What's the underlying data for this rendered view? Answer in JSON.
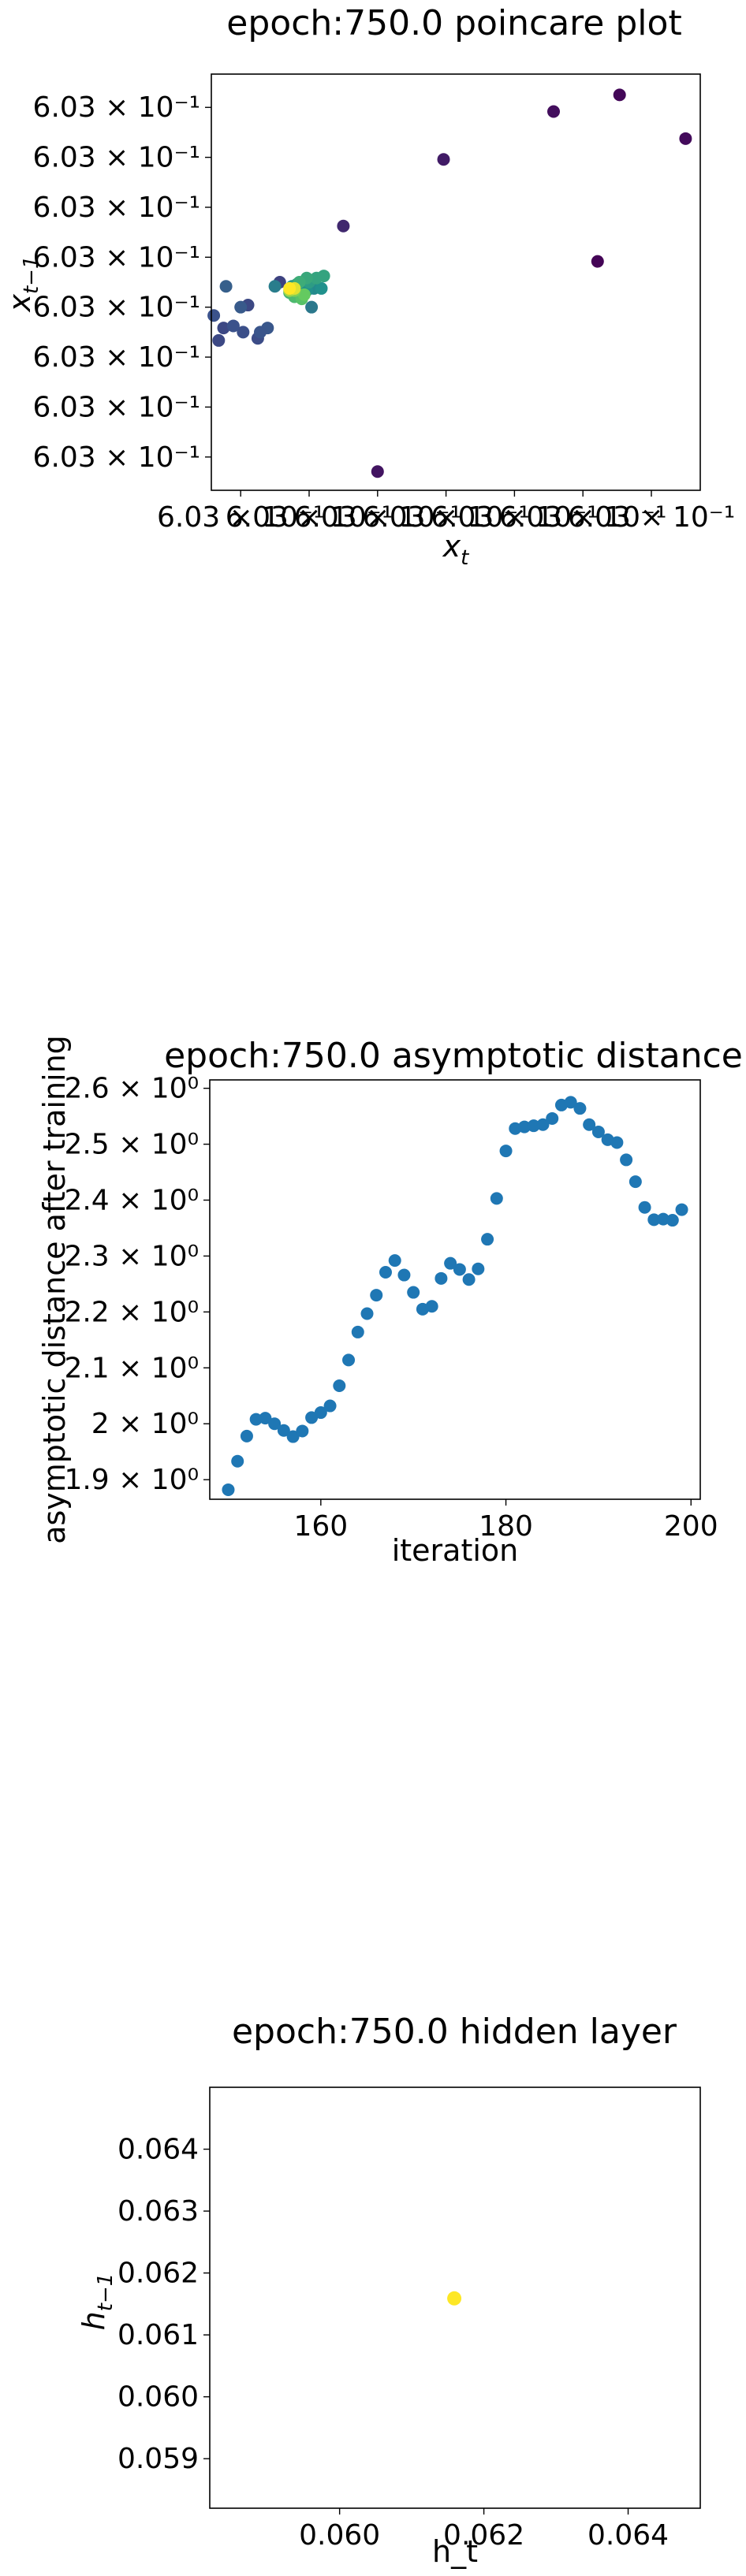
{
  "chart_data": [
    {
      "type": "scatter",
      "title": "epoch:750.0 poincare plot",
      "xlabel_base": "x",
      "xlabel_sub": "t",
      "ylabel_base": "x",
      "ylabel_sub": "t−1",
      "colormap": "viridis",
      "xlim": [
        0,
        100
      ],
      "ylim": [
        0,
        100
      ],
      "x_ticks": [
        {
          "pos": 6,
          "label": "6.03 × 10⁻¹"
        },
        {
          "pos": 20,
          "label": "6.03 × 10⁻¹"
        },
        {
          "pos": 34,
          "label": "6.03 × 10⁻¹"
        },
        {
          "pos": 48,
          "label": "6.03 × 10⁻¹"
        },
        {
          "pos": 62,
          "label": "6.03 × 10⁻¹"
        },
        {
          "pos": 76,
          "label": "6.03 × 10⁻¹"
        },
        {
          "pos": 90,
          "label": "6.03 × 10⁻¹"
        }
      ],
      "y_ticks": [
        {
          "pos": 92,
          "label": "6.03 × 10⁻¹"
        },
        {
          "pos": 80,
          "label": "6.03 × 10⁻¹"
        },
        {
          "pos": 68,
          "label": "6.03 × 10⁻¹"
        },
        {
          "pos": 56,
          "label": "6.03 × 10⁻¹"
        },
        {
          "pos": 44,
          "label": "6.03 × 10⁻¹"
        },
        {
          "pos": 32,
          "label": "6.03 × 10⁻¹"
        },
        {
          "pos": 20,
          "label": "6.03 × 10⁻¹"
        },
        {
          "pos": 8,
          "label": "6.03 × 10⁻¹"
        }
      ],
      "points": [
        {
          "x": 83.5,
          "y": 95.0,
          "c": 0.02
        },
        {
          "x": 97.0,
          "y": 84.5,
          "c": 0.03
        },
        {
          "x": 70.0,
          "y": 91.0,
          "c": 0.04
        },
        {
          "x": 79.0,
          "y": 55.0,
          "c": 0.01
        },
        {
          "x": 47.5,
          "y": 79.5,
          "c": 0.08
        },
        {
          "x": 27.0,
          "y": 63.5,
          "c": 0.12
        },
        {
          "x": 34.0,
          "y": 4.5,
          "c": 0.06
        },
        {
          "x": 14.0,
          "y": 50.0,
          "c": 0.2
        },
        {
          "x": 2.5,
          "y": 39.0,
          "c": 0.22
        },
        {
          "x": 6.5,
          "y": 38.0,
          "c": 0.24
        },
        {
          "x": 9.5,
          "y": 36.5,
          "c": 0.23
        },
        {
          "x": 4.5,
          "y": 39.5,
          "c": 0.25
        },
        {
          "x": 11.5,
          "y": 39.0,
          "c": 0.27
        },
        {
          "x": 10.0,
          "y": 38.0,
          "c": 0.26
        },
        {
          "x": 0.5,
          "y": 42.0,
          "c": 0.25
        },
        {
          "x": 7.5,
          "y": 44.5,
          "c": 0.22
        },
        {
          "x": 1.5,
          "y": 36.0,
          "c": 0.22
        },
        {
          "x": 6.0,
          "y": 44.0,
          "c": 0.28
        },
        {
          "x": 3.0,
          "y": 49.0,
          "c": 0.3
        },
        {
          "x": 17.0,
          "y": 47.0,
          "c": 0.35
        },
        {
          "x": 20.5,
          "y": 44.0,
          "c": 0.4
        },
        {
          "x": 13.0,
          "y": 49.0,
          "c": 0.42
        },
        {
          "x": 18.0,
          "y": 47.5,
          "c": 0.45
        },
        {
          "x": 21.0,
          "y": 48.5,
          "c": 0.47
        },
        {
          "x": 22.5,
          "y": 48.5,
          "c": 0.5
        },
        {
          "x": 19.5,
          "y": 48.0,
          "c": 0.5
        },
        {
          "x": 16.5,
          "y": 49.0,
          "c": 0.52
        },
        {
          "x": 17.5,
          "y": 49.5,
          "c": 0.55
        },
        {
          "x": 20.0,
          "y": 50.0,
          "c": 0.55
        },
        {
          "x": 21.5,
          "y": 51.0,
          "c": 0.58
        },
        {
          "x": 23.0,
          "y": 51.5,
          "c": 0.58
        },
        {
          "x": 19.5,
          "y": 51.0,
          "c": 0.6
        },
        {
          "x": 18.0,
          "y": 50.0,
          "c": 0.62
        },
        {
          "x": 16.0,
          "y": 47.5,
          "c": 0.65
        },
        {
          "x": 17.0,
          "y": 46.5,
          "c": 0.68
        },
        {
          "x": 18.5,
          "y": 46.0,
          "c": 0.72
        },
        {
          "x": 19.0,
          "y": 47.0,
          "c": 0.76
        },
        {
          "x": 17.0,
          "y": 48.0,
          "c": 0.8
        },
        {
          "x": 16.0,
          "y": 48.0,
          "c": 0.85
        },
        {
          "x": 17.0,
          "y": 48.5,
          "c": 0.95
        },
        {
          "x": 16.0,
          "y": 48.5,
          "c": 1.0
        }
      ]
    },
    {
      "type": "scatter",
      "title": "epoch:750.0 asymptotic distance",
      "xlabel": "iteration",
      "ylabel": "asymptotic distance after training",
      "color": "#1f77b4",
      "xlim": [
        148,
        201
      ],
      "ylim": [
        1.865,
        2.615
      ],
      "x_ticks": [
        {
          "value": 160,
          "label": "160"
        },
        {
          "value": 180,
          "label": "180"
        },
        {
          "value": 200,
          "label": "200"
        }
      ],
      "y_ticks": [
        {
          "value": 1.9,
          "label": "1.9 × 10⁰"
        },
        {
          "value": 2.0,
          "label": "2 × 10⁰"
        },
        {
          "value": 2.1,
          "label": "2.1 × 10⁰"
        },
        {
          "value": 2.2,
          "label": "2.2 × 10⁰"
        },
        {
          "value": 2.3,
          "label": "2.3 × 10⁰"
        },
        {
          "value": 2.4,
          "label": "2.4 × 10⁰"
        },
        {
          "value": 2.5,
          "label": "2.5 × 10⁰"
        },
        {
          "value": 2.6,
          "label": "2.6 × 10⁰"
        }
      ],
      "x": [
        150,
        151,
        152,
        153,
        154,
        155,
        156,
        157,
        158,
        159,
        160,
        161,
        162,
        163,
        164,
        165,
        166,
        167,
        168,
        169,
        170,
        171,
        172,
        173,
        174,
        175,
        176,
        177,
        178,
        179,
        180,
        181,
        182,
        183,
        184,
        185,
        186,
        187,
        188,
        189,
        190,
        191,
        192,
        193,
        194,
        195,
        196,
        197,
        198,
        199
      ],
      "y": [
        1.882,
        1.933,
        1.978,
        2.008,
        2.01,
        2.0,
        1.988,
        1.977,
        1.987,
        2.011,
        2.02,
        2.032,
        2.068,
        2.114,
        2.164,
        2.197,
        2.23,
        2.271,
        2.292,
        2.266,
        2.235,
        2.205,
        2.21,
        2.26,
        2.287,
        2.276,
        2.258,
        2.277,
        2.33,
        2.403,
        2.488,
        2.528,
        2.531,
        2.533,
        2.535,
        2.546,
        2.57,
        2.575,
        2.564,
        2.535,
        2.522,
        2.508,
        2.503,
        2.472,
        2.433,
        2.387,
        2.365,
        2.366,
        2.364,
        2.383
      ]
    },
    {
      "type": "scatter",
      "title": "epoch:750.0 hidden layer",
      "xlabel": "h_t",
      "ylabel_base": "h",
      "ylabel_sub": "t−1",
      "color": "#fde725",
      "xlim": [
        0.0582,
        0.065
      ],
      "ylim": [
        0.0582,
        0.065
      ],
      "x_ticks": [
        {
          "value": 0.06,
          "label": "0.060"
        },
        {
          "value": 0.062,
          "label": "0.062"
        },
        {
          "value": 0.064,
          "label": "0.064"
        }
      ],
      "y_ticks": [
        {
          "value": 0.059,
          "label": "0.059"
        },
        {
          "value": 0.06,
          "label": "0.060"
        },
        {
          "value": 0.061,
          "label": "0.061"
        },
        {
          "value": 0.062,
          "label": "0.062"
        },
        {
          "value": 0.063,
          "label": "0.063"
        },
        {
          "value": 0.064,
          "label": "0.064"
        }
      ],
      "points": [
        {
          "x": 0.06159,
          "y": 0.06159
        }
      ]
    }
  ]
}
